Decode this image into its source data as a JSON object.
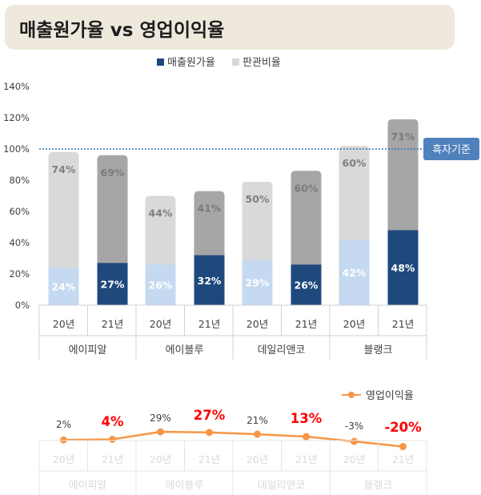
{
  "title": "매출원가율 vs 영업이익율",
  "chart_data": [
    {
      "type": "bar",
      "stacked": true,
      "companies": [
        "에이피알",
        "에이블루",
        "데일리앤코",
        "블랭크"
      ],
      "years": [
        "20년",
        "21년"
      ],
      "categories": [
        "20년",
        "21년",
        "20년",
        "21년",
        "20년",
        "21년",
        "20년",
        "21년"
      ],
      "series": [
        {
          "name": "매출원가율",
          "values": [
            24,
            27,
            26,
            32,
            29,
            26,
            42,
            48
          ]
        },
        {
          "name": "판관비율",
          "values": [
            74,
            69,
            44,
            41,
            50,
            60,
            60,
            71
          ]
        }
      ],
      "value_labels": {
        "cost": [
          "24%",
          "27%",
          "26%",
          "32%",
          "29%",
          "26%",
          "42%",
          "48%"
        ],
        "sga": [
          "74%",
          "69%",
          "44%",
          "41%",
          "50%",
          "60%",
          "60%",
          "71%"
        ]
      },
      "ylim": [
        0,
        140
      ],
      "yticks": [
        "0%",
        "20%",
        "40%",
        "60%",
        "80%",
        "100%",
        "120%",
        "140%"
      ],
      "reference_line": {
        "value": 100,
        "label": "흑자기준"
      },
      "legend_position": "top",
      "colors": {
        "cost_2020": "#c5d9f1",
        "cost_2021": "#1f497d",
        "sga_2020": "#d9d9d9",
        "sga_2021": "#a6a6a6",
        "reference": "#2e75b6",
        "reference_badge": "#4f81bd"
      }
    },
    {
      "type": "line",
      "categories": [
        "20년",
        "21년",
        "20년",
        "21년",
        "20년",
        "21년",
        "20년",
        "21년"
      ],
      "companies": [
        "에이피알",
        "에이블루",
        "데일리앤코",
        "블랭크"
      ],
      "series": [
        {
          "name": "영업이익율",
          "values": [
            2,
            4,
            29,
            27,
            21,
            13,
            -3,
            -20
          ]
        }
      ],
      "value_labels": [
        "2%",
        "4%",
        "29%",
        "27%",
        "21%",
        "13%",
        "-3%",
        "-20%"
      ],
      "highlight_21_color": "#ff0000",
      "line_color": "#f79646",
      "legend_position": "top-right"
    }
  ]
}
